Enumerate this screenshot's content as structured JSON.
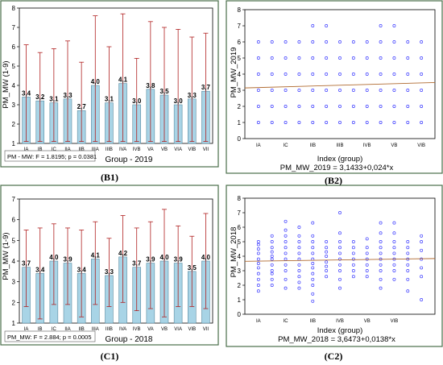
{
  "panels": {
    "B1": {
      "caption": "(B1)",
      "xlabel": "Group - 2019",
      "ylabel": "PM_MW (1-9)",
      "stat_box": "PM - MW: F = 1.8195; p = 0.0381"
    },
    "B2": {
      "caption": "(B2)",
      "xlabel": "Index (group)",
      "ylabel": "PM_MW_2019",
      "equation": "PM_MW_2019 = 3,1433+0,024*x"
    },
    "C1": {
      "caption": "(C1)",
      "xlabel": "Group - 2018",
      "ylabel": "PM_MW (1-9)",
      "stat_box": "PM_MW: F = 2.884; p = 0.0005"
    },
    "C2": {
      "caption": "(C2)",
      "xlabel": "Index (group)",
      "ylabel": "PM_MW_2018",
      "equation": "PM_MW_2018 = 3,6473+0,0138*x"
    }
  },
  "colors": {
    "bar_fill": "#a8d4e6",
    "bar_stroke": "#5a8aa0",
    "error_bar": "#b02020",
    "point": "#3c3cff",
    "fit_line": "#b06a30",
    "frame": "#4a6e4a"
  },
  "chart_data": [
    {
      "id": "B1",
      "type": "bar",
      "title": "",
      "xlabel": "Group - 2019",
      "ylabel": "PM_MW (1-9)",
      "ylim": [
        1,
        8
      ],
      "yticks": [
        1,
        2,
        3,
        4,
        5,
        6,
        7,
        8
      ],
      "categories": [
        "IA",
        "IB",
        "IC",
        "IIA",
        "IIB",
        "IIIA",
        "IIIB",
        "IVA",
        "IVB",
        "VA",
        "VB",
        "VIA",
        "VIB",
        "VII"
      ],
      "value_labels": [
        "3,4",
        "3,2",
        "3,1",
        "3,3",
        "2,7",
        "4,0",
        "3,1",
        "4,1",
        "3,0",
        "3,8",
        "3,5",
        "3,0",
        "3,3",
        "3,7"
      ],
      "values": [
        3.4,
        3.2,
        3.1,
        3.3,
        2.7,
        4.0,
        3.1,
        4.1,
        3.0,
        3.8,
        3.5,
        3.0,
        3.3,
        3.7
      ],
      "error_high": [
        6.1,
        5.7,
        5.9,
        6.3,
        5.2,
        7.6,
        6.0,
        7.7,
        5.4,
        7.3,
        7.0,
        6.9,
        6.5,
        6.7
      ],
      "error_low": [
        1.1,
        1.1,
        1.1,
        1.1,
        1.1,
        1.1,
        1.1,
        1.1,
        1.1,
        1.1,
        1.1,
        1.1,
        1.1,
        1.1
      ],
      "annotation": "PM - MW: F = 1.8195; p = 0.0381",
      "grid": false
    },
    {
      "id": "B2",
      "type": "scatter",
      "title": "",
      "xlabel": "Index (group)",
      "ylabel": "PM_MW_2019",
      "ylim": [
        0,
        8
      ],
      "yticks": [
        0,
        1,
        2,
        3,
        4,
        5,
        6,
        7,
        8
      ],
      "xlim": [
        0,
        14
      ],
      "xtick_positions": [
        1,
        3,
        5,
        7,
        9,
        11,
        13
      ],
      "xtick_labels": [
        "IA",
        "IC",
        "IIB",
        "IIIB",
        "IVB",
        "VB",
        "VIB"
      ],
      "x": [
        1,
        2,
        3,
        4,
        5,
        6,
        7,
        8,
        9,
        10,
        11,
        12,
        13
      ],
      "columns_y": [
        [
          1,
          2,
          3,
          4,
          5,
          6
        ],
        [
          1,
          2,
          3,
          4,
          5,
          6
        ],
        [
          1,
          2,
          3,
          4,
          5,
          6
        ],
        [
          1,
          2,
          3,
          4,
          5,
          6
        ],
        [
          1,
          2,
          3,
          4,
          5,
          6,
          7
        ],
        [
          1,
          2,
          3,
          4,
          5,
          6,
          7
        ],
        [
          1,
          2,
          3,
          4,
          5,
          6
        ],
        [
          1,
          2,
          3,
          4,
          5,
          6
        ],
        [
          1,
          2,
          3,
          4,
          5,
          6
        ],
        [
          1,
          2,
          3,
          4,
          5,
          6,
          7
        ],
        [
          1,
          2,
          3,
          4,
          5,
          6,
          7
        ],
        [
          1,
          2,
          3,
          4,
          5,
          6
        ],
        [
          1,
          2,
          3,
          4,
          5,
          6
        ]
      ],
      "fit": {
        "intercept": 3.1433,
        "slope": 0.024
      },
      "annotation": "PM_MW_2019 = 3,1433+0,024*x",
      "grid": false
    },
    {
      "id": "C1",
      "type": "bar",
      "title": "",
      "xlabel": "Group - 2018",
      "ylabel": "PM_MW (1-9)",
      "ylim": [
        1,
        7
      ],
      "yticks": [
        1,
        2,
        3,
        4,
        5,
        6,
        7
      ],
      "categories": [
        "IA",
        "IB",
        "IC",
        "IIA",
        "IIB",
        "IIIA",
        "IIIB",
        "IVA",
        "IVB",
        "VA",
        "VB",
        "VIA",
        "VIB",
        "VII"
      ],
      "value_labels": [
        "3,7",
        "3,4",
        "4,0",
        "3,9",
        "3,4",
        "4,1",
        "3,3",
        "4,2",
        "3,7",
        "3,9",
        "4,0",
        "3,9",
        "3,5",
        "4,0"
      ],
      "values": [
        3.7,
        3.4,
        4.0,
        3.9,
        3.4,
        4.1,
        3.3,
        4.2,
        3.7,
        3.9,
        4.0,
        3.9,
        3.5,
        4.0
      ],
      "error_high": [
        5.5,
        5.6,
        5.8,
        5.6,
        5.5,
        5.9,
        5.1,
        6.2,
        5.6,
        5.9,
        6.5,
        5.7,
        5.2,
        6.3
      ],
      "error_low": [
        1.8,
        1.2,
        1.9,
        1.9,
        1.3,
        1.9,
        1.8,
        2.0,
        1.6,
        1.7,
        1.3,
        1.8,
        1.8,
        1.7
      ],
      "annotation": "PM_MW: F = 2.884; p = 0,0005",
      "grid": false
    },
    {
      "id": "C2",
      "type": "scatter",
      "title": "",
      "xlabel": "Index (group)",
      "ylabel": "PM_MW_2018",
      "ylim": [
        0,
        8
      ],
      "yticks": [
        0,
        1,
        2,
        3,
        4,
        5,
        6,
        7,
        8
      ],
      "xlim": [
        0,
        14
      ],
      "xtick_positions": [
        1,
        3,
        5,
        7,
        9,
        11,
        13
      ],
      "xtick_labels": [
        "IA",
        "IC",
        "IIB",
        "IVB",
        "VB",
        "VIB",
        ""
      ],
      "x": [
        1,
        2,
        3,
        4,
        5,
        6,
        7,
        8,
        9,
        10,
        11,
        12,
        13
      ],
      "columns_y": [
        [
          1.6,
          2,
          2.4,
          2.8,
          3.2,
          3.5,
          3.8,
          4.2,
          4.5,
          4.8,
          5
        ],
        [
          2,
          2.4,
          2.8,
          3,
          3.4,
          3.8,
          4,
          4.3,
          4.6,
          5,
          5.4
        ],
        [
          1.8,
          2.4,
          3,
          3.4,
          3.8,
          4.2,
          4.6,
          5,
          5.4,
          5.8,
          6.4
        ],
        [
          1.8,
          2.2,
          2.6,
          3,
          3.4,
          3.8,
          4.2,
          4.6,
          5,
          5.4,
          6
        ],
        [
          0.9,
          1.4,
          2,
          2.4,
          2.8,
          3.2,
          3.5,
          3.8,
          4.2,
          4.6,
          5,
          5.4,
          6.3
        ],
        [
          2.6,
          3,
          3.3,
          3.6,
          4,
          4.3,
          4.6,
          5
        ],
        [
          1.8,
          2.4,
          3,
          3.4,
          3.8,
          4.2,
          4.6,
          5,
          5.6,
          7
        ],
        [
          2.6,
          3,
          3.4,
          3.8,
          4.2,
          4.6,
          5
        ],
        [
          2.6,
          3,
          3.4,
          3.8,
          4.2,
          4.6,
          5.2
        ],
        [
          1.8,
          2.4,
          3,
          3.4,
          3.8,
          4.2,
          4.6,
          5,
          5.6,
          6.3
        ],
        [
          2.4,
          3,
          3.4,
          3.8,
          4.2,
          4.6,
          5,
          5.6,
          6.3
        ],
        [
          1.6,
          2.4,
          3,
          3.4,
          3.8,
          4.2,
          4.6,
          5
        ],
        [
          1,
          2.6,
          3.2,
          3.8,
          4.4,
          5,
          5.4
        ]
      ],
      "fit": {
        "intercept": 3.6473,
        "slope": 0.0138
      },
      "annotation": "PM_MW_2018 = 3,6473+0,0138*x",
      "grid": false
    }
  ]
}
